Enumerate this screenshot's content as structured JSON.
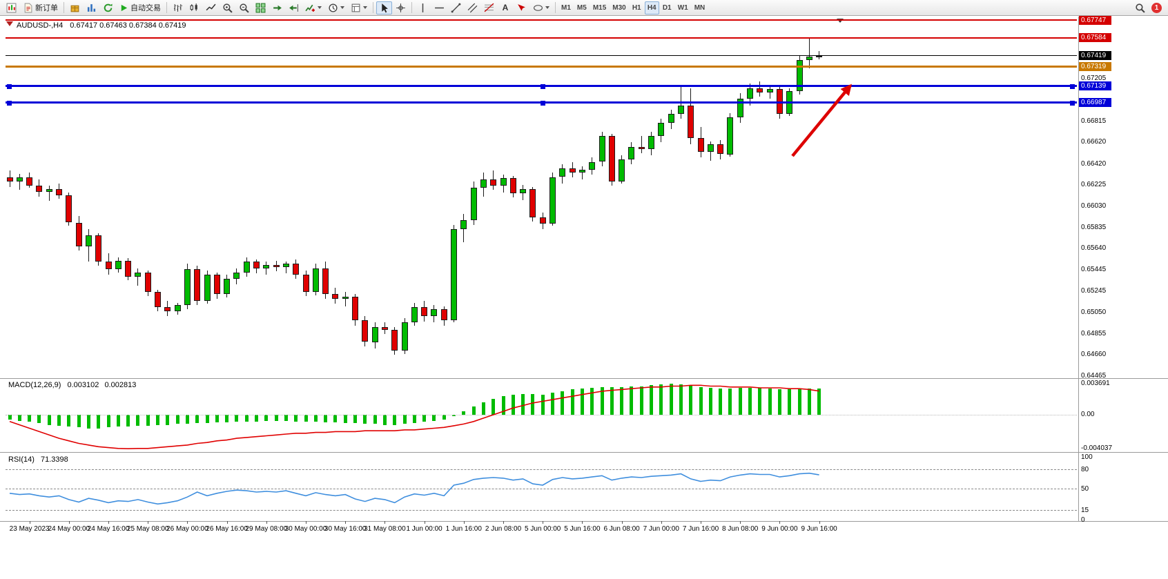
{
  "toolbar": {
    "new_order": "新订单",
    "autotrading": "自动交易",
    "timeframes": [
      "M1",
      "M5",
      "M15",
      "M30",
      "H1",
      "H4",
      "D1",
      "W1",
      "MN"
    ],
    "active_timeframe": "H4",
    "notification_count": "1",
    "icons": {
      "text_tool": "A"
    }
  },
  "chart_data": {
    "type": "candlestick",
    "symbol": "AUDUSD-",
    "timeframe": "H4",
    "header": {
      "symbol_period": "AUDUSD-,H4",
      "ohlc": "0.67417 0.67463 0.67384 0.67419"
    },
    "colors": {
      "bull": "#00BB00",
      "bear": "#E00000",
      "wick": "#1a1a1a",
      "macd_hist": "#00BB00",
      "macd_signal": "#E00000",
      "rsi_line": "#3E8EDE",
      "red": "#D40000",
      "orange": "#C87800",
      "blue": "#0000D8",
      "black": "#000000",
      "arrow": "#DD0000"
    },
    "price_axis": {
      "min": 0.64465,
      "max": 0.67747,
      "plain_labels": [
        "0.67205",
        "0.66815",
        "0.66620",
        "0.66420",
        "0.66225",
        "0.66030",
        "0.65835",
        "0.65640",
        "0.65445",
        "0.65245",
        "0.65050",
        "0.64855",
        "0.64660",
        "0.64465"
      ]
    },
    "levels": [
      {
        "price": "0.67747",
        "color": "red",
        "type": "hline"
      },
      {
        "price": "0.67584",
        "color": "red",
        "type": "hline"
      },
      {
        "price": "0.67419",
        "color": "black",
        "type": "bid"
      },
      {
        "price": "0.67319",
        "color": "orange",
        "type": "hline"
      },
      {
        "price": "0.67139",
        "color": "blue",
        "type": "hline_selected"
      },
      {
        "price": "0.66987",
        "color": "blue",
        "type": "hline_selected"
      }
    ],
    "candles": [
      [
        0.663,
        0.6636,
        0.6621,
        0.6626
      ],
      [
        0.6626,
        0.6633,
        0.6618,
        0.663
      ],
      [
        0.663,
        0.6634,
        0.662,
        0.6622
      ],
      [
        0.6622,
        0.6628,
        0.6612,
        0.6616
      ],
      [
        0.6616,
        0.6622,
        0.6608,
        0.6619
      ],
      [
        0.6619,
        0.6624,
        0.661,
        0.6613
      ],
      [
        0.6613,
        0.6616,
        0.6585,
        0.6588
      ],
      [
        0.6588,
        0.6594,
        0.6562,
        0.6566
      ],
      [
        0.6566,
        0.6582,
        0.6552,
        0.6576
      ],
      [
        0.6576,
        0.6578,
        0.6548,
        0.6552
      ],
      [
        0.6552,
        0.656,
        0.654,
        0.6545
      ],
      [
        0.6545,
        0.6556,
        0.6542,
        0.6553
      ],
      [
        0.6553,
        0.6555,
        0.6535,
        0.6538
      ],
      [
        0.6538,
        0.6546,
        0.653,
        0.6542
      ],
      [
        0.6542,
        0.6544,
        0.652,
        0.6524
      ],
      [
        0.6524,
        0.6526,
        0.6506,
        0.651
      ],
      [
        0.651,
        0.6516,
        0.6502,
        0.6506
      ],
      [
        0.6506,
        0.6514,
        0.6503,
        0.6512
      ],
      [
        0.6512,
        0.655,
        0.6508,
        0.6545
      ],
      [
        0.6545,
        0.6548,
        0.6512,
        0.6516
      ],
      [
        0.6516,
        0.6544,
        0.6513,
        0.654
      ],
      [
        0.654,
        0.6542,
        0.6518,
        0.6522
      ],
      [
        0.6522,
        0.654,
        0.6519,
        0.6536
      ],
      [
        0.6536,
        0.6546,
        0.6531,
        0.6542
      ],
      [
        0.6542,
        0.6556,
        0.6538,
        0.6552
      ],
      [
        0.6552,
        0.6554,
        0.6541,
        0.6546
      ],
      [
        0.6546,
        0.6552,
        0.654,
        0.6549
      ],
      [
        0.6549,
        0.6553,
        0.6543,
        0.6547
      ],
      [
        0.6547,
        0.6552,
        0.6541,
        0.655
      ],
      [
        0.655,
        0.6554,
        0.6536,
        0.654
      ],
      [
        0.654,
        0.6544,
        0.652,
        0.6524
      ],
      [
        0.6524,
        0.655,
        0.6521,
        0.6546
      ],
      [
        0.6546,
        0.6552,
        0.6518,
        0.6522
      ],
      [
        0.6522,
        0.6528,
        0.6513,
        0.6518
      ],
      [
        0.6518,
        0.6524,
        0.6511,
        0.652
      ],
      [
        0.652,
        0.6522,
        0.6493,
        0.6498
      ],
      [
        0.6498,
        0.6502,
        0.6474,
        0.6478
      ],
      [
        0.6478,
        0.6496,
        0.6472,
        0.6492
      ],
      [
        0.6492,
        0.6496,
        0.6485,
        0.6489
      ],
      [
        0.6489,
        0.6492,
        0.6466,
        0.647
      ],
      [
        0.647,
        0.65,
        0.6467,
        0.6496
      ],
      [
        0.6496,
        0.6514,
        0.6493,
        0.651
      ],
      [
        0.651,
        0.6516,
        0.6497,
        0.6502
      ],
      [
        0.6502,
        0.6512,
        0.6496,
        0.6508
      ],
      [
        0.6508,
        0.6511,
        0.6493,
        0.6498
      ],
      [
        0.6498,
        0.6586,
        0.6496,
        0.6582
      ],
      [
        0.6582,
        0.6596,
        0.657,
        0.659
      ],
      [
        0.659,
        0.6626,
        0.6586,
        0.662
      ],
      [
        0.662,
        0.6634,
        0.6612,
        0.6628
      ],
      [
        0.6628,
        0.6636,
        0.6618,
        0.6622
      ],
      [
        0.6622,
        0.6632,
        0.6616,
        0.6629
      ],
      [
        0.6629,
        0.6631,
        0.6611,
        0.6615
      ],
      [
        0.6615,
        0.6623,
        0.6609,
        0.6619
      ],
      [
        0.6619,
        0.6621,
        0.6589,
        0.6593
      ],
      [
        0.6593,
        0.6597,
        0.6582,
        0.6587
      ],
      [
        0.6587,
        0.6634,
        0.6585,
        0.663
      ],
      [
        0.663,
        0.6642,
        0.6624,
        0.6638
      ],
      [
        0.6638,
        0.6644,
        0.663,
        0.6634
      ],
      [
        0.6634,
        0.664,
        0.6628,
        0.6637
      ],
      [
        0.6637,
        0.6648,
        0.6632,
        0.6644
      ],
      [
        0.6644,
        0.6672,
        0.664,
        0.6668
      ],
      [
        0.6668,
        0.667,
        0.6622,
        0.6626
      ],
      [
        0.6626,
        0.665,
        0.6624,
        0.6646
      ],
      [
        0.6646,
        0.6662,
        0.6642,
        0.6658
      ],
      [
        0.6658,
        0.6668,
        0.6652,
        0.6656
      ],
      [
        0.6656,
        0.6672,
        0.665,
        0.6668
      ],
      [
        0.6668,
        0.6684,
        0.6662,
        0.668
      ],
      [
        0.668,
        0.6692,
        0.6674,
        0.6688
      ],
      [
        0.6688,
        0.6714,
        0.6684,
        0.6696
      ],
      [
        0.6696,
        0.6712,
        0.666,
        0.6666
      ],
      [
        0.6666,
        0.6676,
        0.6648,
        0.6653
      ],
      [
        0.6653,
        0.6663,
        0.6645,
        0.666
      ],
      [
        0.666,
        0.6664,
        0.6646,
        0.6651
      ],
      [
        0.6651,
        0.6689,
        0.6649,
        0.6685
      ],
      [
        0.6685,
        0.6707,
        0.668,
        0.6702
      ],
      [
        0.6702,
        0.6716,
        0.6696,
        0.6712
      ],
      [
        0.6712,
        0.6718,
        0.6704,
        0.6708
      ],
      [
        0.6708,
        0.6715,
        0.6702,
        0.6711
      ],
      [
        0.6711,
        0.6714,
        0.6684,
        0.6688
      ],
      [
        0.6688,
        0.6712,
        0.6686,
        0.6709
      ],
      [
        0.6709,
        0.6742,
        0.6706,
        0.6738
      ],
      [
        0.6738,
        0.67584,
        0.673,
        0.6741
      ],
      [
        0.67417,
        0.67463,
        0.67384,
        0.67419
      ]
    ],
    "time_labels": [
      {
        "i": 2,
        "label": "23 May 2023"
      },
      {
        "i": 6,
        "label": "24 May 00:00"
      },
      {
        "i": 10,
        "label": "24 May 16:00"
      },
      {
        "i": 14,
        "label": "25 May 08:00"
      },
      {
        "i": 18,
        "label": "26 May 00:00"
      },
      {
        "i": 22,
        "label": "26 May 16:00"
      },
      {
        "i": 26,
        "label": "29 May 08:00"
      },
      {
        "i": 30,
        "label": "30 May 00:00"
      },
      {
        "i": 34,
        "label": "30 May 16:00"
      },
      {
        "i": 38,
        "label": "31 May 08:00"
      },
      {
        "i": 42,
        "label": "1 Jun 00:00"
      },
      {
        "i": 46,
        "label": "1 Jun 16:00"
      },
      {
        "i": 50,
        "label": "2 Jun 08:00"
      },
      {
        "i": 54,
        "label": "5 Jun 00:00"
      },
      {
        "i": 58,
        "label": "5 Jun 16:00"
      },
      {
        "i": 62,
        "label": "6 Jun 08:00"
      },
      {
        "i": 66,
        "label": "7 Jun 00:00"
      },
      {
        "i": 70,
        "label": "7 Jun 16:00"
      },
      {
        "i": 74,
        "label": "8 Jun 08:00"
      },
      {
        "i": 78,
        "label": "9 Jun 00:00"
      },
      {
        "i": 82,
        "label": "9 Jun 16:00"
      }
    ],
    "macd": {
      "label": "MACD(12,26,9)",
      "main_value": "0.003102",
      "signal_value": "0.002813",
      "scale": {
        "max": "0.003691",
        "zero": "0.00",
        "min": "-0.004037"
      },
      "histogram": [
        -0.0006,
        -0.0007,
        -0.0008,
        -0.001,
        -0.0012,
        -0.0013,
        -0.0014,
        -0.0015,
        -0.0016,
        -0.0016,
        -0.0015,
        -0.0014,
        -0.0014,
        -0.0013,
        -0.0013,
        -0.0012,
        -0.0012,
        -0.0011,
        -0.0011,
        -0.001,
        -0.001,
        -0.0009,
        -0.0009,
        -0.0008,
        -0.0008,
        -0.0008,
        -0.0007,
        -0.0007,
        -0.0007,
        -0.0008,
        -0.0008,
        -0.0008,
        -0.0009,
        -0.0009,
        -0.001,
        -0.001,
        -0.0011,
        -0.0011,
        -0.0012,
        -0.0012,
        -0.0011,
        -0.001,
        -0.0008,
        -0.0007,
        -0.0006,
        -0.0002,
        0.0004,
        0.001,
        0.0015,
        0.0019,
        0.0022,
        0.0024,
        0.0025,
        0.0025,
        0.0024,
        0.0026,
        0.0028,
        0.003,
        0.0031,
        0.0032,
        0.0033,
        0.0033,
        0.0033,
        0.0034,
        0.0034,
        0.0035,
        0.0036,
        0.003691,
        0.0036,
        0.0035,
        0.0033,
        0.0032,
        0.0031,
        0.0031,
        0.0032,
        0.0032,
        0.0032,
        0.0031,
        0.003,
        0.003,
        0.0031,
        0.0031,
        0.003102
      ],
      "signal": [
        -0.0008,
        -0.0012,
        -0.0016,
        -0.002,
        -0.0024,
        -0.0028,
        -0.0031,
        -0.0034,
        -0.0036,
        -0.0038,
        -0.0039,
        -0.004,
        -0.004037,
        -0.004,
        -0.004,
        -0.0039,
        -0.0038,
        -0.0037,
        -0.0036,
        -0.0034,
        -0.0033,
        -0.0031,
        -0.003,
        -0.0028,
        -0.0027,
        -0.0026,
        -0.0025,
        -0.0024,
        -0.0023,
        -0.0022,
        -0.0022,
        -0.0021,
        -0.0021,
        -0.002,
        -0.002,
        -0.002,
        -0.0019,
        -0.0019,
        -0.0019,
        -0.0019,
        -0.0018,
        -0.0018,
        -0.0017,
        -0.0016,
        -0.0015,
        -0.0013,
        -0.0011,
        -0.0008,
        -0.0004,
        0.0,
        0.0004,
        0.0008,
        0.0011,
        0.0014,
        0.0016,
        0.0018,
        0.002,
        0.0022,
        0.0024,
        0.0026,
        0.0028,
        0.0029,
        0.003,
        0.0031,
        0.0032,
        0.0033,
        0.0033,
        0.0034,
        0.0034,
        0.0035,
        0.0035,
        0.0034,
        0.0034,
        0.0033,
        0.0033,
        0.0033,
        0.0032,
        0.0032,
        0.0032,
        0.0031,
        0.0031,
        0.003,
        0.002813
      ]
    },
    "rsi": {
      "label": "RSI(14)",
      "value_text": "71.3398",
      "levels": [
        80,
        50,
        15
      ],
      "scale": [
        100,
        80,
        50,
        15,
        0
      ],
      "series": [
        42,
        40,
        41,
        38,
        36,
        38,
        32,
        28,
        34,
        31,
        27,
        30,
        29,
        32,
        28,
        25,
        27,
        30,
        36,
        44,
        38,
        42,
        45,
        47,
        46,
        44,
        45,
        44,
        46,
        42,
        38,
        43,
        40,
        38,
        40,
        33,
        29,
        34,
        32,
        27,
        36,
        41,
        39,
        42,
        38,
        55,
        58,
        64,
        66,
        67,
        66,
        63,
        65,
        57,
        55,
        64,
        67,
        65,
        66,
        68,
        70,
        63,
        66,
        68,
        67,
        69,
        70,
        71,
        73,
        65,
        61,
        63,
        62,
        68,
        71,
        73,
        72,
        72,
        68,
        70,
        73,
        74,
        71.34
      ]
    },
    "annotation_arrow": {
      "from": [
        1148,
        226
      ],
      "to": [
        1232,
        124
      ]
    }
  }
}
